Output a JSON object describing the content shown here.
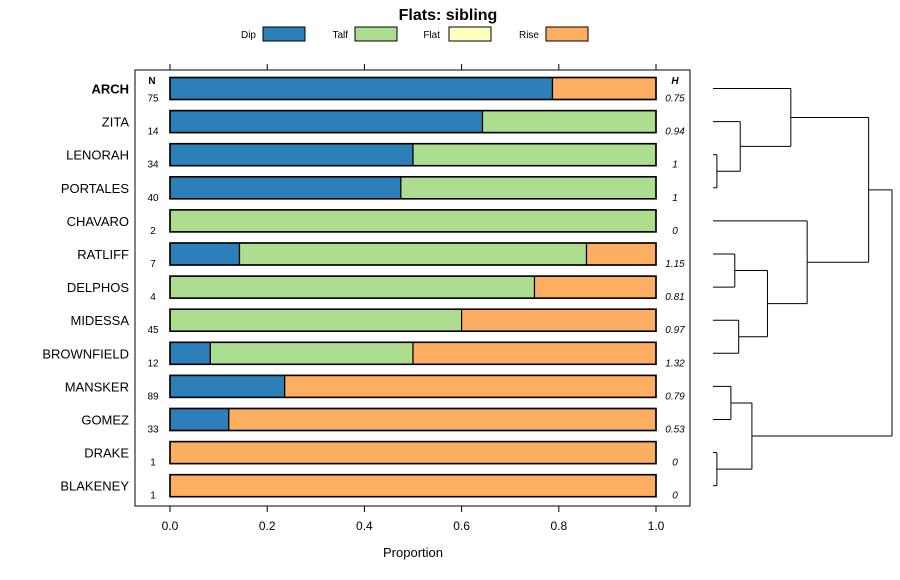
{
  "chart_data": {
    "type": "bar",
    "orientation": "horizontal",
    "stacked": true,
    "title": "Flats: sibling",
    "xlabel": "Proportion",
    "xlim": [
      0.0,
      1.0
    ],
    "xticks": [
      "0.0",
      "0.2",
      "0.4",
      "0.6",
      "0.8",
      "1.0"
    ],
    "n_header": "N",
    "h_header": "H",
    "series": [
      {
        "name": "Dip",
        "color": "#2c7fb8"
      },
      {
        "name": "Talf",
        "color": "#addd8e"
      },
      {
        "name": "Flat",
        "color": "#ffffbf"
      },
      {
        "name": "Rise",
        "color": "#fdae61"
      }
    ],
    "categories": [
      "ARCH",
      "ZITA",
      "LENORAH",
      "PORTALES",
      "CHAVARO",
      "RATLIFF",
      "DELPHOS",
      "MIDESSA",
      "BROWNFIELD",
      "MANSKER",
      "GOMEZ",
      "DRAKE",
      "BLAKENEY"
    ],
    "bold_categories": [
      "ARCH"
    ],
    "rows": [
      {
        "label": "ARCH",
        "n": "75",
        "h": "0.75",
        "values": [
          0.787,
          0.0,
          0.0,
          0.213
        ]
      },
      {
        "label": "ZITA",
        "n": "14",
        "h": "0.94",
        "values": [
          0.643,
          0.357,
          0.0,
          0.0
        ]
      },
      {
        "label": "LENORAH",
        "n": "34",
        "h": "1",
        "values": [
          0.5,
          0.5,
          0.0,
          0.0
        ]
      },
      {
        "label": "PORTALES",
        "n": "40",
        "h": "1",
        "values": [
          0.475,
          0.525,
          0.0,
          0.0
        ]
      },
      {
        "label": "CHAVARO",
        "n": "2",
        "h": "0",
        "values": [
          0.0,
          1.0,
          0.0,
          0.0
        ]
      },
      {
        "label": "RATLIFF",
        "n": "7",
        "h": "1.15",
        "values": [
          0.143,
          0.714,
          0.0,
          0.143
        ]
      },
      {
        "label": "DELPHOS",
        "n": "4",
        "h": "0.81",
        "values": [
          0.0,
          0.75,
          0.0,
          0.25
        ]
      },
      {
        "label": "MIDESSA",
        "n": "45",
        "h": "0.97",
        "values": [
          0.0,
          0.6,
          0.0,
          0.4
        ]
      },
      {
        "label": "BROWNFIELD",
        "n": "12",
        "h": "1.32",
        "values": [
          0.083,
          0.417,
          0.0,
          0.5
        ]
      },
      {
        "label": "MANSKER",
        "n": "89",
        "h": "0.79",
        "values": [
          0.236,
          0.0,
          0.0,
          0.764
        ]
      },
      {
        "label": "GOMEZ",
        "n": "33",
        "h": "0.53",
        "values": [
          0.121,
          0.0,
          0.0,
          0.879
        ]
      },
      {
        "label": "DRAKE",
        "n": "1",
        "h": "0",
        "values": [
          0.0,
          0.0,
          0.0,
          1.0
        ]
      },
      {
        "label": "BLAKENEY",
        "n": "1",
        "h": "0",
        "values": [
          0.0,
          0.0,
          0.0,
          1.0
        ]
      }
    ],
    "dendrogram": {
      "merges": [
        {
          "a": 2,
          "b": 3,
          "height": 0.05
        },
        {
          "a": 11,
          "b": 12,
          "height": 0.05
        },
        {
          "a": 9,
          "b": 10,
          "height": 0.23
        },
        {
          "a": 5,
          "b": 6,
          "height": 0.28
        },
        {
          "a": 7,
          "b": 8,
          "height": 0.33
        },
        {
          "a": "m0",
          "b": 1,
          "height": 0.35
        },
        {
          "a": "m3",
          "b": "m4",
          "height": 0.7
        },
        {
          "a": "m2",
          "b": "m1",
          "height": 0.5
        },
        {
          "a": 0,
          "b": "m5",
          "height": 1.0
        },
        {
          "a": 4,
          "b": "m6",
          "height": 1.21
        },
        {
          "a": "m8",
          "b": "m9",
          "height": 2.0
        },
        {
          "a": "m10",
          "b": "m7",
          "height": 2.3
        }
      ],
      "max_height": 2.3
    }
  }
}
